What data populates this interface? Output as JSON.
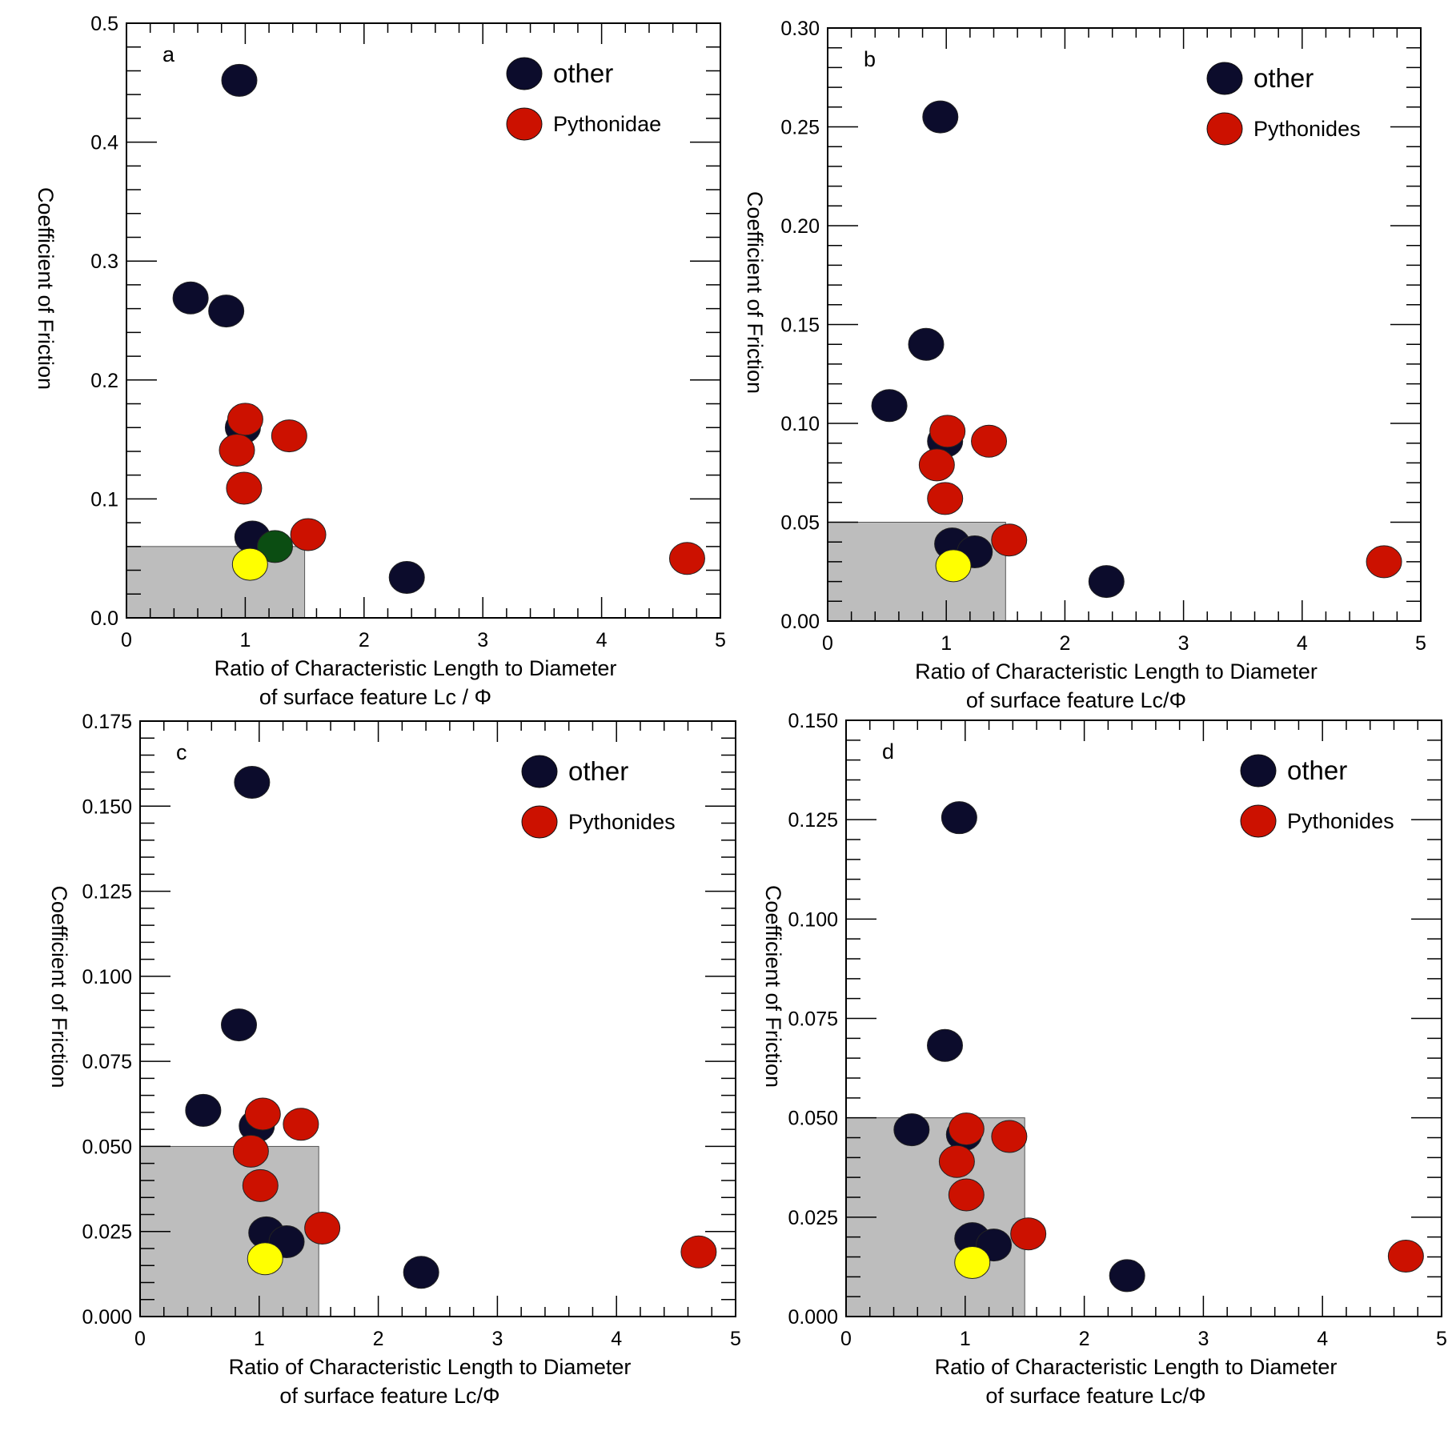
{
  "colors": {
    "other": "#0c0c2c",
    "pythonid": "#cc1100",
    "green": "#0b4d12",
    "yellow": "#ffff00",
    "region": "#bdbdbd"
  },
  "chart_data": [
    {
      "type": "scatter",
      "panel": "a",
      "xlabel": [
        "Ratio of Characteristic Length to Diameter",
        "of surface feature Lc / Φ"
      ],
      "ylabel": "Coefficient of Friction",
      "xlim": [
        0,
        5
      ],
      "ylim": [
        0,
        0.5
      ],
      "xticks": [
        "0",
        "1",
        "2",
        "3",
        "4",
        "5"
      ],
      "yticks": [
        "0.0",
        "0.1",
        "0.2",
        "0.3",
        "0.4",
        "0.5"
      ],
      "legend": {
        "placement": "top-right",
        "entries": [
          "other",
          "Pythonidae"
        ]
      },
      "shaded_region": {
        "x": [
          0,
          1.5
        ],
        "y": [
          0,
          0.06
        ]
      },
      "series": [
        {
          "name": "other",
          "color_key": "other",
          "points": [
            [
              0.95,
              0.452
            ],
            [
              0.54,
              0.269
            ],
            [
              0.84,
              0.258
            ],
            [
              0.98,
              0.16
            ],
            [
              1.06,
              0.068
            ],
            [
              2.36,
              0.034
            ]
          ]
        },
        {
          "name": "Pythonidae",
          "color_key": "pythonid",
          "points": [
            [
              1.0,
              0.167
            ],
            [
              0.93,
              0.141
            ],
            [
              1.37,
              0.153
            ],
            [
              0.99,
              0.109
            ],
            [
              1.53,
              0.07
            ],
            [
              4.72,
              0.05
            ]
          ]
        },
        {
          "color_key": "green",
          "points": [
            [
              1.25,
              0.06
            ]
          ]
        },
        {
          "color_key": "yellow",
          "points": [
            [
              1.04,
              0.045
            ]
          ]
        }
      ]
    },
    {
      "type": "scatter",
      "panel": "b",
      "xlabel": [
        "Ratio of Characteristic Length to Diameter",
        "of surface feature Lc/Φ"
      ],
      "ylabel": "Coefficient of Friction",
      "xlim": [
        0,
        5
      ],
      "ylim": [
        0,
        0.3
      ],
      "xticks": [
        "0",
        "1",
        "2",
        "3",
        "4",
        "5"
      ],
      "yticks": [
        "0.00",
        "0.05",
        "0.10",
        "0.15",
        "0.20",
        "0.25",
        "0.30"
      ],
      "legend": {
        "placement": "top-right",
        "entries": [
          "other",
          "Pythonides"
        ]
      },
      "shaded_region": {
        "x": [
          0,
          1.5
        ],
        "y": [
          0,
          0.05
        ]
      },
      "series": [
        {
          "name": "other",
          "color_key": "other",
          "points": [
            [
              0.95,
              0.255
            ],
            [
              0.83,
              0.14
            ],
            [
              0.52,
              0.109
            ],
            [
              0.99,
              0.091
            ],
            [
              1.05,
              0.039
            ],
            [
              1.24,
              0.035
            ],
            [
              2.35,
              0.02
            ]
          ]
        },
        {
          "name": "Pythonides",
          "color_key": "pythonid",
          "points": [
            [
              1.01,
              0.096
            ],
            [
              1.36,
              0.091
            ],
            [
              0.92,
              0.079
            ],
            [
              0.99,
              0.062
            ],
            [
              1.53,
              0.041
            ],
            [
              4.69,
              0.03
            ]
          ]
        },
        {
          "color_key": "yellow",
          "points": [
            [
              1.06,
              0.028
            ]
          ]
        }
      ]
    },
    {
      "type": "scatter",
      "panel": "c",
      "xlabel": [
        "Ratio of Characteristic Length to Diameter",
        "of surface feature Lc/Φ"
      ],
      "ylabel": "Coefficient of Friction",
      "xlim": [
        0,
        5
      ],
      "ylim": [
        0,
        0.175
      ],
      "xticks": [
        "0",
        "1",
        "2",
        "3",
        "4",
        "5"
      ],
      "yticks": [
        "0.000",
        "0.025",
        "0.050",
        "0.075",
        "0.100",
        "0.125",
        "0.150",
        "0.175"
      ],
      "legend": {
        "placement": "top-right",
        "entries": [
          "other",
          "Pythonides"
        ]
      },
      "shaded_region": {
        "x": [
          0,
          1.5
        ],
        "y": [
          0,
          0.05
        ]
      },
      "series": [
        {
          "name": "other",
          "color_key": "other",
          "points": [
            [
              0.94,
              0.157
            ],
            [
              0.83,
              0.0857
            ],
            [
              0.53,
              0.0606
            ],
            [
              0.98,
              0.056
            ],
            [
              1.06,
              0.0246
            ],
            [
              1.23,
              0.022
            ],
            [
              2.36,
              0.013
            ]
          ]
        },
        {
          "name": "Pythonides",
          "color_key": "pythonid",
          "points": [
            [
              1.03,
              0.0595
            ],
            [
              1.35,
              0.0565
            ],
            [
              0.93,
              0.0486
            ],
            [
              1.01,
              0.0385
            ],
            [
              1.53,
              0.026
            ],
            [
              4.69,
              0.019
            ]
          ]
        },
        {
          "color_key": "yellow",
          "points": [
            [
              1.05,
              0.017
            ]
          ]
        }
      ]
    },
    {
      "type": "scatter",
      "panel": "d",
      "xlabel": [
        "Ratio of Characteristic Length to Diameter",
        "of surface feature Lc/Φ"
      ],
      "ylabel": "Coefficient of Friction",
      "xlim": [
        0,
        5
      ],
      "ylim": [
        0,
        0.15
      ],
      "xticks": [
        "0",
        "1",
        "2",
        "3",
        "4",
        "5"
      ],
      "yticks": [
        "0.000",
        "0.025",
        "0.050",
        "0.075",
        "0.100",
        "0.125",
        "0.150"
      ],
      "legend": {
        "placement": "top-right",
        "entries": [
          "other",
          "Pythonides"
        ]
      },
      "shaded_region": {
        "x": [
          0,
          1.5
        ],
        "y": [
          0,
          0.05
        ]
      },
      "series": [
        {
          "name": "other",
          "color_key": "other",
          "points": [
            [
              0.95,
              0.1255
            ],
            [
              0.83,
              0.0682
            ],
            [
              0.55,
              0.047
            ],
            [
              0.99,
              0.0458
            ],
            [
              1.06,
              0.0196
            ],
            [
              1.24,
              0.018
            ],
            [
              2.36,
              0.0103
            ]
          ]
        },
        {
          "name": "Pythonides",
          "color_key": "pythonid",
          "points": [
            [
              1.01,
              0.0472
            ],
            [
              1.37,
              0.0453
            ],
            [
              0.93,
              0.039
            ],
            [
              1.01,
              0.0306
            ],
            [
              1.53,
              0.0208
            ],
            [
              4.7,
              0.0152
            ]
          ]
        },
        {
          "color_key": "yellow",
          "points": [
            [
              1.06,
              0.0136
            ]
          ]
        }
      ]
    }
  ]
}
